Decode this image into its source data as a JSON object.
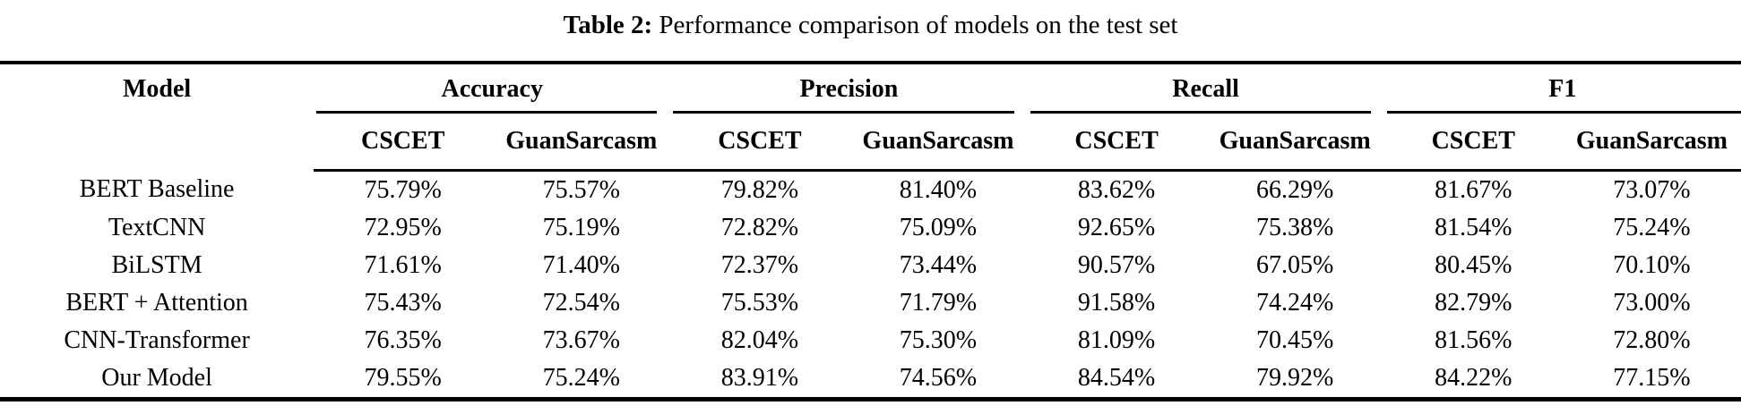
{
  "caption": {
    "label": "Table 2:",
    "text": "Performance comparison of models on the test set"
  },
  "table": {
    "model_header": "Model",
    "groups": [
      {
        "label": "Accuracy",
        "columns": [
          "CSCET",
          "GuanSarcasm"
        ]
      },
      {
        "label": "Precision",
        "columns": [
          "CSCET",
          "GuanSarcasm"
        ]
      },
      {
        "label": "Recall",
        "columns": [
          "CSCET",
          "GuanSarcasm"
        ]
      },
      {
        "label": "F1",
        "columns": [
          "CSCET",
          "GuanSarcasm"
        ]
      }
    ],
    "rows": [
      {
        "model": "BERT Baseline",
        "values": [
          "75.79%",
          "75.57%",
          "79.82%",
          "81.40%",
          "83.62%",
          "66.29%",
          "81.67%",
          "73.07%"
        ]
      },
      {
        "model": "TextCNN",
        "values": [
          "72.95%",
          "75.19%",
          "72.82%",
          "75.09%",
          "92.65%",
          "75.38%",
          "81.54%",
          "75.24%"
        ]
      },
      {
        "model": "BiLSTM",
        "values": [
          "71.61%",
          "71.40%",
          "72.37%",
          "73.44%",
          "90.57%",
          "67.05%",
          "80.45%",
          "70.10%"
        ]
      },
      {
        "model": "BERT + Attention",
        "values": [
          "75.43%",
          "72.54%",
          "75.53%",
          "71.79%",
          "91.58%",
          "74.24%",
          "82.79%",
          "73.00%"
        ]
      },
      {
        "model": "CNN-Transformer",
        "values": [
          "76.35%",
          "73.67%",
          "82.04%",
          "75.30%",
          "81.09%",
          "70.45%",
          "81.56%",
          "72.80%"
        ]
      },
      {
        "model": "Our Model",
        "values": [
          "79.55%",
          "75.24%",
          "83.91%",
          "74.56%",
          "84.54%",
          "79.92%",
          "84.22%",
          "77.15%"
        ]
      }
    ]
  },
  "colors": {
    "text": "#000000",
    "background": "#ffffff",
    "rule": "#000000"
  }
}
